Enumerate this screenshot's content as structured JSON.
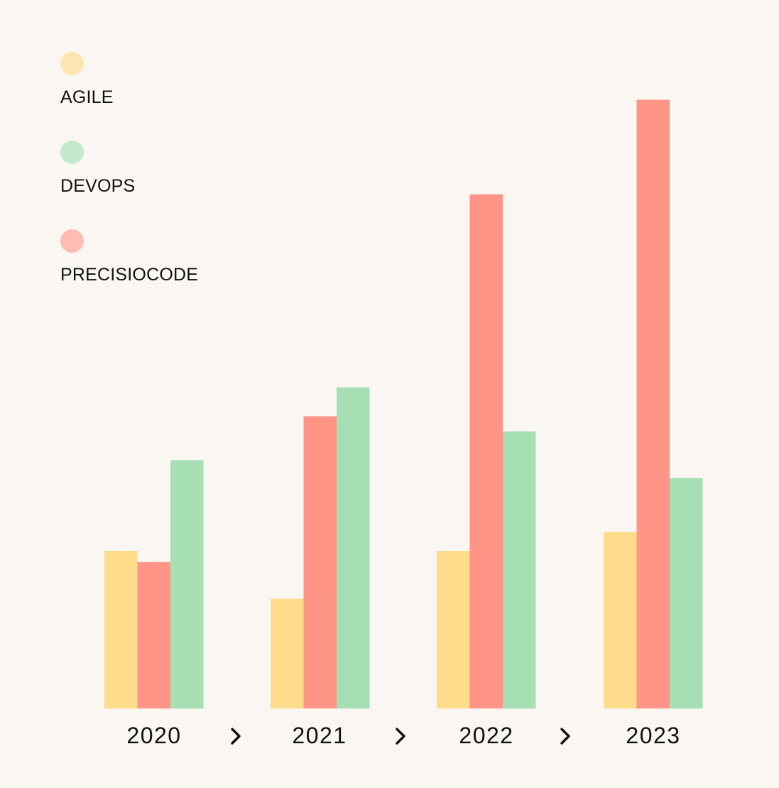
{
  "chart_data": {
    "type": "bar",
    "categories": [
      "2020",
      "2021",
      "2022",
      "2023"
    ],
    "series": [
      {
        "name": "AGILE",
        "color": "#fddc8c",
        "values": [
          240,
          167,
          240,
          269
        ]
      },
      {
        "name": "PRECISIOCODE",
        "color": "#fe9586",
        "values": [
          223,
          445,
          783,
          927
        ]
      },
      {
        "name": "DEVOPS",
        "color": "#a6dfb4",
        "values": [
          378,
          489,
          422,
          351
        ]
      }
    ],
    "legend": {
      "placement": "top-left",
      "items": [
        {
          "label": "AGILE",
          "color": "#ffe5b2"
        },
        {
          "label": "DEVOPS",
          "color": "#c5e9cc"
        },
        {
          "label": "PRECISIOCODE",
          "color": "#ffbcb2"
        }
      ]
    },
    "separator_icon": "chevron-right-icon",
    "ylim": [
      0,
      1000
    ],
    "grid": false,
    "title": "",
    "xlabel": "",
    "ylabel": ""
  }
}
